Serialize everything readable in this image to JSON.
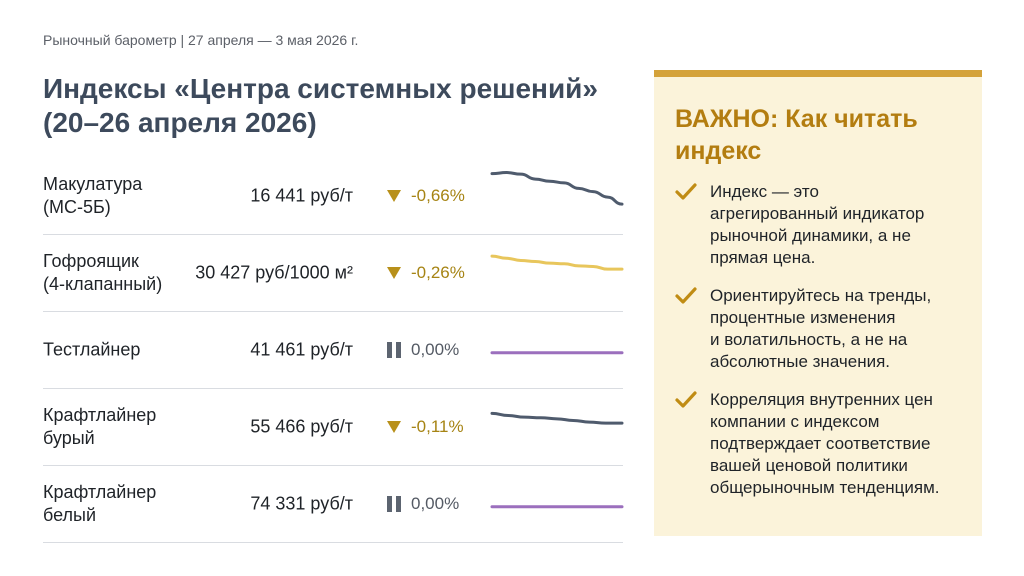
{
  "header": {
    "meta": "Рыночный барометр | 27 апреля — 3 мая 2026 г.",
    "title_lines": [
      "Индексы «Центра системных решений»",
      "(20–26 апреля 2026)"
    ]
  },
  "rows": [
    {
      "name_lines": [
        "Макулатура",
        "(МС-5Б)"
      ],
      "price": "16 441 руб/т",
      "change": "-0,66%",
      "trend": "down",
      "spark": [
        9.6,
        9.8,
        9.5,
        8.6,
        8.2,
        7.9,
        6.9,
        6.3,
        5.3,
        4.0
      ],
      "spark_color": "#4f5b6d"
    },
    {
      "name_lines": [
        "Гофроящик",
        "(4-клапанный)"
      ],
      "price": "30 427 руб/1000 м²",
      "change": "-0,26%",
      "trend": "down",
      "spark": [
        8.6,
        8.2,
        7.8,
        7.6,
        7.3,
        7.2,
        6.8,
        6.7,
        6.2,
        6.2
      ],
      "spark_color": "#e8c65c"
    },
    {
      "name_lines": [
        "Тестлайнер"
      ],
      "price": "41 461 руб/т",
      "change": "0,00%",
      "trend": "flat",
      "spark": [
        5,
        5
      ],
      "spark_color": "#9b6fbd"
    },
    {
      "name_lines": [
        "Крафтлайнер",
        "бурый"
      ],
      "price": "55 466 руб/т",
      "change": "-0,11%",
      "trend": "down",
      "spark": [
        8.0,
        7.6,
        7.3,
        7.2,
        7.0,
        6.7,
        6.4,
        6.2,
        6.2
      ],
      "spark_color": "#4f5b6d"
    },
    {
      "name_lines": [
        "Крафтлайнер",
        "белый"
      ],
      "price": "74 331 руб/т",
      "change": "0,00%",
      "trend": "flat",
      "spark": [
        5,
        5
      ],
      "spark_color": "#9b6fbd"
    }
  ],
  "panel": {
    "title_lines": [
      "ВАЖНО: Как читать",
      "индекс"
    ],
    "items": [
      {
        "lines": [
          "Индекс — это",
          "агрегированный индикатор",
          "рыночной динамики, а не",
          "прямая цена."
        ]
      },
      {
        "lines": [
          "Ориентируйтесь на тренды,",
          "процентные изменения",
          "и волатильность, а не на",
          "абсолютные значения."
        ]
      },
      {
        "lines": [
          "Корреляция внутренних цен",
          "компании с индексом",
          "подтверждает соответствие",
          "вашей ценовой политики",
          "общерыночным тенденциям."
        ]
      }
    ],
    "accent": "#d4a23a",
    "check_icon": "check-icon"
  }
}
